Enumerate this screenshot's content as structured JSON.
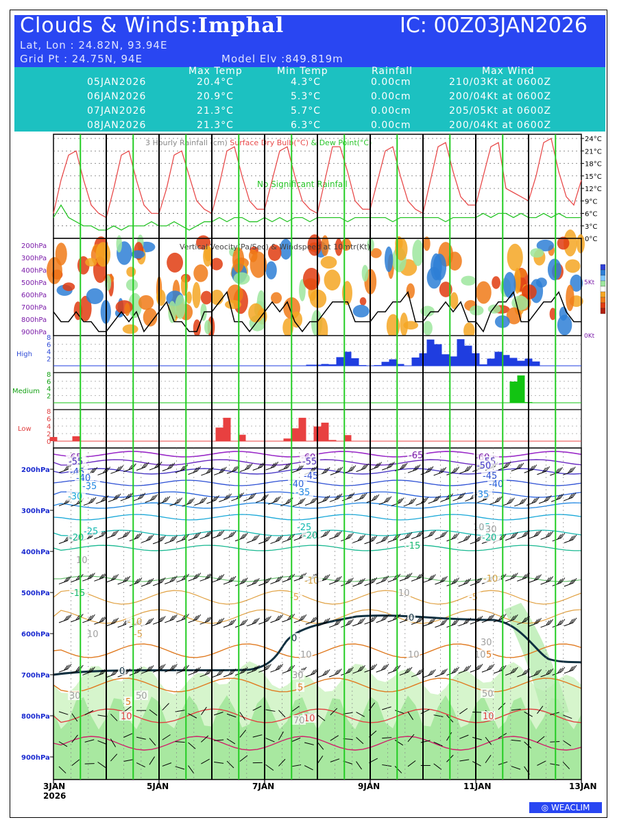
{
  "header": {
    "title_prefix": "Clouds & Winds:",
    "title_place": "Imphal",
    "ic_label": "IC: 00Z03JAN2026",
    "latlon": "Lat, Lon : 24.82N, 93.94E",
    "gridpt": "Grid Pt   : 24.75N, 94E",
    "model_elv": "Model Elv :849.819m",
    "bg_color": "#2946f2"
  },
  "summary": {
    "columns": [
      "Max Temp",
      "Min Temp",
      "Rainfall",
      "Max Wind"
    ],
    "rows": [
      {
        "date": "05JAN2026",
        "max": "20.4°C",
        "min": "4.3°C",
        "rain": "0.00cm",
        "wind": "210/03Kt at 0600Z"
      },
      {
        "date": "06JAN2026",
        "max": "20.9°C",
        "min": "5.3°C",
        "rain": "0.00cm",
        "wind": "200/04Kt at 0600Z"
      },
      {
        "date": "07JAN2026",
        "max": "21.3°C",
        "min": "5.7°C",
        "rain": "0.00cm",
        "wind": "205/05Kt at 0600Z"
      },
      {
        "date": "08JAN2026",
        "max": "21.3°C",
        "min": "6.3°C",
        "rain": "0.00cm",
        "wind": "200/04Kt at 0600Z"
      }
    ],
    "bg_color": "#1cc1c1"
  },
  "chart_data": [
    {
      "type": "line",
      "title": "3 Hourly Rainfall (cm)   Surface Dry Bulb(°C)   & Dew Point(°C)",
      "title_parts": [
        "3 Hourly Rainfall (cm)",
        "Surface Dry Bulb(°C)",
        "& Dew Point(°C)"
      ],
      "annotation": "No Significant Rainfall",
      "ylim": [
        0,
        25
      ],
      "yticks": [
        "24°C",
        "21°C",
        "18°C",
        "15°C",
        "12°C",
        "9°C",
        "6°C",
        "3°C",
        "0°C"
      ],
      "series": [
        {
          "name": "Surface Dry Bulb(°C)",
          "color": "#e84a4a",
          "values": [
            6,
            14,
            20,
            21,
            14,
            8,
            6,
            5,
            12,
            20,
            21,
            14,
            8,
            6,
            6,
            12,
            20,
            21,
            15,
            9,
            7,
            6,
            13,
            21,
            22,
            15,
            9,
            7,
            7,
            14,
            21,
            22,
            15,
            9,
            7,
            6,
            14,
            22,
            22,
            16,
            9,
            7,
            7,
            14,
            21,
            22,
            15,
            9,
            7,
            6,
            14,
            22,
            23,
            16,
            10,
            8,
            8,
            15,
            22,
            23,
            12,
            11,
            10,
            9,
            15,
            23,
            24,
            16,
            10,
            8,
            14
          ]
        },
        {
          "name": "& Dew Point(°C)",
          "color": "#27c427",
          "values": [
            5,
            8,
            5,
            4,
            3,
            3,
            2,
            2,
            3,
            2,
            3,
            3,
            3,
            4,
            3,
            3,
            4,
            3,
            2,
            3,
            4,
            4,
            5,
            4,
            5,
            5,
            4,
            4,
            5,
            4,
            5,
            4,
            5,
            5,
            4,
            5,
            5,
            5,
            5,
            4,
            5,
            5,
            5,
            5,
            5,
            4,
            5,
            5,
            5,
            5,
            5,
            5,
            4,
            5,
            5,
            5,
            5,
            6,
            5,
            6,
            6,
            5,
            6,
            5,
            5,
            6,
            5,
            6,
            5,
            5,
            5
          ]
        }
      ]
    },
    {
      "type": "heatmap",
      "title": "Vertical Veocity(Pa/Sec) & Windspeed at 10mtr(Kt)",
      "ylabels": [
        "200hPa",
        "300hPa",
        "400hPa",
        "500hPa",
        "600hPa",
        "700hPa",
        "800hPa",
        "900hPa"
      ],
      "right_labels": [
        "5Kt",
        "0Kt"
      ],
      "windspeed_kt": [
        2,
        1,
        1,
        2,
        1,
        1,
        0,
        0,
        1,
        2,
        1,
        2,
        0,
        1,
        2,
        3,
        1,
        1,
        0,
        0,
        2,
        2,
        3,
        4,
        1,
        1,
        0,
        1,
        2,
        3,
        2,
        3,
        1,
        0,
        1,
        1,
        2,
        3,
        3,
        3,
        1,
        1,
        1,
        2,
        2,
        3,
        3,
        4,
        1,
        1,
        2,
        2,
        3,
        2,
        3,
        1,
        1,
        0,
        2,
        3,
        3,
        4,
        1,
        1,
        2,
        3,
        3,
        4,
        2,
        1,
        1
      ]
    },
    {
      "type": "bar",
      "title": "High",
      "color": "#1f3de0",
      "ylim": [
        0,
        8
      ],
      "yticks": [
        "8",
        "6",
        "4",
        "2"
      ],
      "values": [
        0,
        0,
        0,
        0,
        0,
        0,
        0,
        0,
        0,
        0,
        0,
        0,
        0,
        0,
        0,
        0,
        0,
        0,
        0,
        0,
        0,
        0,
        0,
        0,
        0,
        0,
        0,
        0,
        0,
        0,
        0,
        0,
        0,
        0,
        0.3,
        0.3,
        0.5,
        0.4,
        2.4,
        3.9,
        2.1,
        0.2,
        0,
        0.2,
        1.1,
        1.8,
        0.5,
        0,
        2.3,
        3.5,
        7.3,
        6.0,
        3.2,
        2.6,
        7.4,
        5.6,
        3.5,
        0.4,
        2.0,
        3.9,
        3.0,
        2.2,
        1.4,
        2.0,
        1.2,
        0,
        0,
        0,
        0,
        0,
        0
      ]
    },
    {
      "type": "bar",
      "title": "Medium",
      "color": "#12c412",
      "ylim": [
        0,
        8
      ],
      "yticks": [
        "8",
        "6",
        "4",
        "2"
      ],
      "values": [
        0,
        0,
        0,
        0,
        0,
        0,
        0,
        0,
        0,
        0,
        0,
        0,
        0,
        0,
        0,
        0,
        0,
        0,
        0,
        0,
        0,
        0,
        0,
        0,
        0,
        0,
        0,
        0,
        0,
        0,
        0,
        0,
        0,
        0,
        0,
        0,
        0,
        0,
        0,
        0,
        0,
        0,
        0,
        0,
        0,
        0,
        0,
        0,
        0,
        0,
        0,
        0,
        0,
        0,
        0,
        0,
        0,
        0,
        0,
        0,
        0,
        5.9,
        7.6,
        0.2,
        0,
        0,
        0,
        0,
        0,
        0,
        0
      ]
    },
    {
      "type": "bar",
      "title": "Low",
      "color": "#e84040",
      "ylim": [
        0,
        8
      ],
      "yticks": [
        "8",
        "6",
        "4",
        "2",
        "0"
      ],
      "values": [
        1.1,
        0,
        0,
        1.3,
        0,
        0,
        0,
        0,
        0,
        0,
        0,
        0,
        0,
        0,
        0,
        0,
        0,
        0,
        0,
        0,
        0,
        0,
        3.6,
        6.2,
        0,
        1.7,
        0,
        0,
        0,
        0,
        0,
        0.7,
        3.4,
        6.2,
        0,
        3.9,
        4.9,
        0.3,
        0,
        1.6,
        0,
        0,
        0,
        0,
        0,
        0,
        0,
        0,
        0,
        0,
        0,
        0,
        0,
        0,
        0,
        0,
        0,
        0,
        0,
        0,
        0,
        0,
        0,
        0,
        0,
        0,
        0,
        0,
        0,
        0,
        0
      ]
    },
    {
      "type": "area",
      "title": "Temperature, relative humidity and wind barbs by pressure level",
      "ylabels": [
        "200hPa",
        "300hPa",
        "400hPa",
        "500hPa",
        "600hPa",
        "700hPa",
        "800hPa",
        "900hPa"
      ],
      "x_labels": [
        "3JAN",
        "5JAN",
        "7JAN",
        "9JAN",
        "11JAN",
        "13JAN"
      ],
      "x_year": "2026",
      "contour_labels": [
        {
          "text": "-65",
          "color": "#7a1aa8",
          "at": [
            "3JAN",
            "170hPa"
          ]
        },
        {
          "text": "-60",
          "color": "#7a1aa8",
          "at": [
            "7JAN",
            "170hPa"
          ]
        },
        {
          "text": "-65",
          "color": "#7a1aa8",
          "at": [
            "9JAN",
            "165hPa"
          ]
        },
        {
          "text": "-60",
          "color": "#7a1aa8",
          "at": [
            "11JAN",
            "170hPa"
          ]
        },
        {
          "text": "-55",
          "color": "#4a2ab6",
          "at": [
            "3JAN",
            "180hPa"
          ]
        },
        {
          "text": "-55",
          "color": "#4a2ab6",
          "at": [
            "7JAN",
            "180hPa"
          ]
        },
        {
          "text": "-55",
          "color": "#4a2ab6",
          "at": [
            "11JAN",
            "180hPa"
          ]
        },
        {
          "text": "-50",
          "color": "#3b32c4",
          "at": [
            "11JAN",
            "190hPa"
          ]
        },
        {
          "text": "-45",
          "color": "#2b4ed4",
          "at": [
            "3JAN",
            "205hPa"
          ]
        },
        {
          "text": "-45",
          "color": "#2b4ed4",
          "at": [
            "7JAN",
            "215hPa"
          ]
        },
        {
          "text": "-45",
          "color": "#2b4ed4",
          "at": [
            "11JAN",
            "215hPa"
          ]
        },
        {
          "text": "-40",
          "color": "#2860dc",
          "at": [
            "3JAN",
            "220hPa"
          ]
        },
        {
          "text": "-40",
          "color": "#2860dc",
          "at": [
            "7JAN",
            "235hPa"
          ]
        },
        {
          "text": "-40",
          "color": "#2860dc",
          "at": [
            "11JAN",
            "235hPa"
          ]
        },
        {
          "text": "-35",
          "color": "#1f86e2",
          "at": [
            "3JAN",
            "240hPa"
          ]
        },
        {
          "text": "-35",
          "color": "#1f86e2",
          "at": [
            "7JAN",
            "255hPa"
          ]
        },
        {
          "text": "-35",
          "color": "#1f86e2",
          "at": [
            "11JAN",
            "260hPa"
          ]
        },
        {
          "text": "-30",
          "color": "#18a8d8",
          "at": [
            "3JAN",
            "265hPa"
          ]
        },
        {
          "text": "-25",
          "color": "#12b8b0",
          "at": [
            "3JAN",
            "350hPa"
          ]
        },
        {
          "text": "-25",
          "color": "#12b8b0",
          "at": [
            "7JAN",
            "340hPa"
          ]
        },
        {
          "text": "-25",
          "color": "#12b8b0",
          "at": [
            "11JAN",
            "340hPa"
          ]
        },
        {
          "text": "-20",
          "color": "#12b890",
          "at": [
            "3JAN",
            "365hPa"
          ]
        },
        {
          "text": "-20",
          "color": "#12b890",
          "at": [
            "7JAN",
            "360hPa"
          ]
        },
        {
          "text": "-20",
          "color": "#12b890",
          "at": [
            "11JAN",
            "365hPa"
          ]
        },
        {
          "text": "-15",
          "color": "#18b870",
          "at": [
            "9JAN",
            "385hPa"
          ]
        },
        {
          "text": "-15",
          "color": "#18b870",
          "at": [
            "3JAN",
            "500hPa"
          ]
        },
        {
          "text": "-10",
          "color": "#d4a040",
          "at": [
            "7JAN",
            "470hPa"
          ]
        },
        {
          "text": "-10",
          "color": "#d4a040",
          "at": [
            "11JAN",
            "465hPa"
          ]
        },
        {
          "text": "-10",
          "color": "#d4a040",
          "at": [
            "5JAN",
            "570hPa"
          ]
        },
        {
          "text": "-5",
          "color": "#e0a040",
          "at": [
            "7JAN",
            "510hPa"
          ]
        },
        {
          "text": "-5",
          "color": "#e0a040",
          "at": [
            "11JAN",
            "510hPa"
          ]
        },
        {
          "text": "-5",
          "color": "#e0a040",
          "at": [
            "5JAN",
            "600hPa"
          ]
        },
        {
          "text": "0",
          "color": "#0f3040",
          "at": [
            "9JAN",
            "560hPa"
          ]
        },
        {
          "text": "0",
          "color": "#0f3040",
          "at": [
            "7JAN",
            "610hPa"
          ]
        },
        {
          "text": "0",
          "color": "#0f3040",
          "at": [
            "5JAN",
            "690hPa"
          ]
        },
        {
          "text": "5",
          "color": "#e07a20",
          "at": [
            "11JAN",
            "650hPa"
          ]
        },
        {
          "text": "5",
          "color": "#e07a20",
          "at": [
            "7JAN",
            "730hPa"
          ]
        },
        {
          "text": "5",
          "color": "#e07a20",
          "at": [
            "5JAN",
            "765hPa"
          ]
        },
        {
          "text": "10",
          "color": "#e04040",
          "at": [
            "5JAN",
            "800hPa"
          ]
        },
        {
          "text": "10",
          "color": "#e04040",
          "at": [
            "7JAN",
            "805hPa"
          ]
        },
        {
          "text": "10",
          "color": "#e04040",
          "at": [
            "11JAN",
            "800hPa"
          ]
        },
        {
          "text": "10",
          "color": "#a0a0a0",
          "at": [
            "3JAN",
            "420hPa"
          ]
        },
        {
          "text": "10",
          "color": "#a0a0a0",
          "at": [
            "11JAN",
            "340hPa"
          ]
        },
        {
          "text": "10",
          "color": "#a0a0a0",
          "at": [
            "3JAN",
            "600hPa"
          ]
        },
        {
          "text": "10",
          "color": "#a0a0a0",
          "at": [
            "7JAN",
            "650hPa"
          ]
        },
        {
          "text": "10",
          "color": "#a0a0a0",
          "at": [
            "9JAN",
            "650hPa"
          ]
        },
        {
          "text": "10",
          "color": "#a0a0a0",
          "at": [
            "11JAN",
            "650hPa"
          ]
        },
        {
          "text": "10",
          "color": "#a0a0a0",
          "at": [
            "9JAN",
            "500hPa"
          ]
        },
        {
          "text": "30",
          "color": "#a0a0a0",
          "at": [
            "11JAN",
            "345hPa"
          ]
        },
        {
          "text": "30",
          "color": "#a0a0a0",
          "at": [
            "11JAN",
            "620hPa"
          ]
        },
        {
          "text": "30",
          "color": "#a0a0a0",
          "at": [
            "7JAN",
            "700hPa"
          ]
        },
        {
          "text": "30",
          "color": "#a0a0a0",
          "at": [
            "3JAN",
            "750hPa"
          ]
        },
        {
          "text": "50",
          "color": "#a0a0a0",
          "at": [
            "5JAN",
            "750hPa"
          ]
        },
        {
          "text": "50",
          "color": "#a0a0a0",
          "at": [
            "11JAN",
            "745hPa"
          ]
        },
        {
          "text": "70",
          "color": "#a0a0a0",
          "at": [
            "7JAN",
            "810hPa"
          ]
        }
      ]
    }
  ],
  "footer": {
    "logo_text": "WEACLIM"
  }
}
